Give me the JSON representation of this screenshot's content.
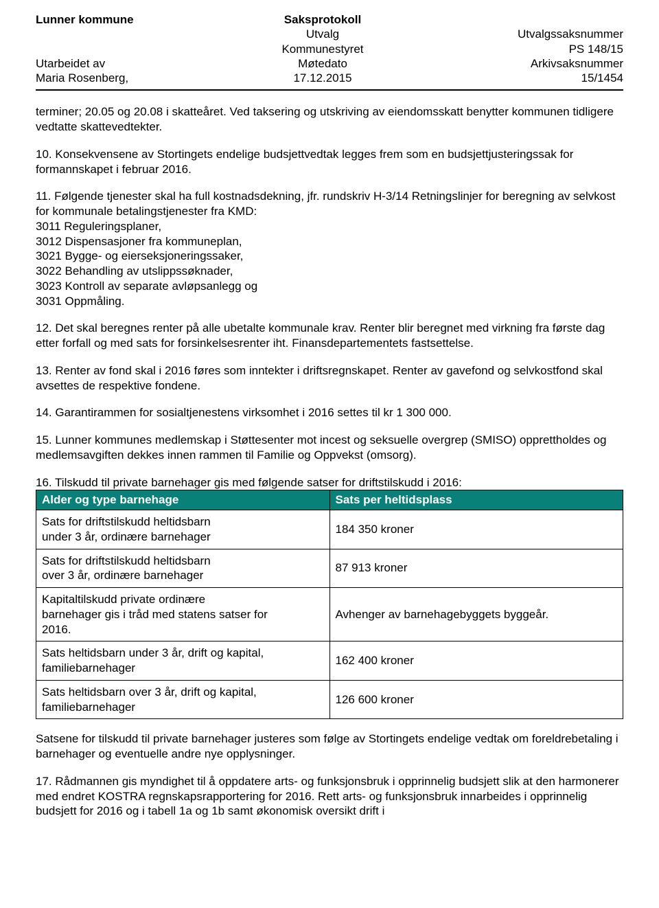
{
  "header": {
    "org": "Lunner kommune",
    "title": "Saksprotokoll",
    "committee_label": "Utvalg",
    "committee_value": "Kommunestyret",
    "casenum_label": "Utvalgssaksnummer",
    "casenum_value": "PS 148/15",
    "prepared_by_label": "Utarbeidet av",
    "prepared_by_value": "Maria Rosenberg,",
    "meeting_date_label": "Møtedato",
    "meeting_date_value": "17.12.2015",
    "archive_case_label": "Arkivsaksnummer",
    "archive_case_value": "15/1454"
  },
  "paragraphs": {
    "p_intro": "terminer; 20.05 og 20.08 i skatteåret. Ved taksering og utskriving av eiendomsskatt benytter kommunen tidligere vedtatte skattevedtekter.",
    "p10": "10. Konsekvensene av Stortingets endelige budsjettvedtak legges frem som en budsjettjusteringssak for formannskapet i februar 2016.",
    "p11": "11. Følgende tjenester skal ha full kostnadsdekning, jfr. rundskriv H-3/14 Retningslinjer for beregning av selvkost for kommunale betalingstjenester fra KMD:\n3011 Reguleringsplaner,\n3012 Dispensasjoner fra kommuneplan,\n3021 Bygge- og eierseksjoneringssaker,\n3022 Behandling av utslippssøknader,\n3023 Kontroll av separate avløpsanlegg og\n3031 Oppmåling.",
    "p12": "12. Det skal beregnes renter på alle ubetalte kommunale krav. Renter blir beregnet med virkning fra første dag etter forfall og med sats for forsinkelsesrenter iht. Finansdepartementets fastsettelse.",
    "p13": "13. Renter av fond skal i 2016 føres som inntekter i driftsregnskapet. Renter av gavefond og selvkostfond skal avsettes de respektive fondene.",
    "p14": "14. Garantirammen for sosialtjenestens virksomhet i 2016 settes til kr 1 300 000.",
    "p15": "15. Lunner kommunes medlemskap i Støttesenter mot incest og seksuelle overgrep (SMISO) opprettholdes og medlemsavgiften dekkes innen rammen til Familie og Oppvekst (omsorg).",
    "p16_intro": "16. Tilskudd til private barnehager gis med følgende satser for driftstilskudd i 2016:",
    "p_satsene": "Satsene for tilskudd til private barnehager justeres som følge av Stortingets endelige vedtak om foreldrebetaling i barnehager og eventuelle andre nye opplysninger.",
    "p17": "17. Rådmannen gis myndighet til å oppdatere arts- og funksjonsbruk i opprinnelig budsjett slik at den harmonerer med endret KOSTRA regnskapsrapportering for 2016. Rett arts- og funksjonsbruk innarbeides i opprinnelig budsjett for 2016 og i tabell 1a og 1b samt økonomisk oversikt drift i"
  },
  "rates_table": {
    "header_bg": "#0a8178",
    "header_fg": "#ffffff",
    "border_color": "#000000",
    "col1": "Alder og type barnehage",
    "col2": "Sats per heltidsplass",
    "rows": [
      {
        "label": "Sats for driftstilskudd heltidsbarn\nunder 3 år, ordinære barnehager",
        "value": "184 350 kroner"
      },
      {
        "label": "Sats for driftstilskudd heltidsbarn\nover 3 år, ordinære barnehager",
        "value": "87 913 kroner"
      },
      {
        "label": "Kapitaltilskudd private ordinære\nbarnehager gis i tråd med statens satser for\n2016.",
        "value": "Avhenger av barnehagebyggets byggeår."
      },
      {
        "label": "Sats heltidsbarn under 3 år, drift og kapital,\nfamiliebarnehager",
        "value": "162 400 kroner"
      },
      {
        "label": "Sats heltidsbarn over 3 år, drift og kapital,\nfamiliebarnehager",
        "value": "126 600 kroner"
      }
    ]
  }
}
